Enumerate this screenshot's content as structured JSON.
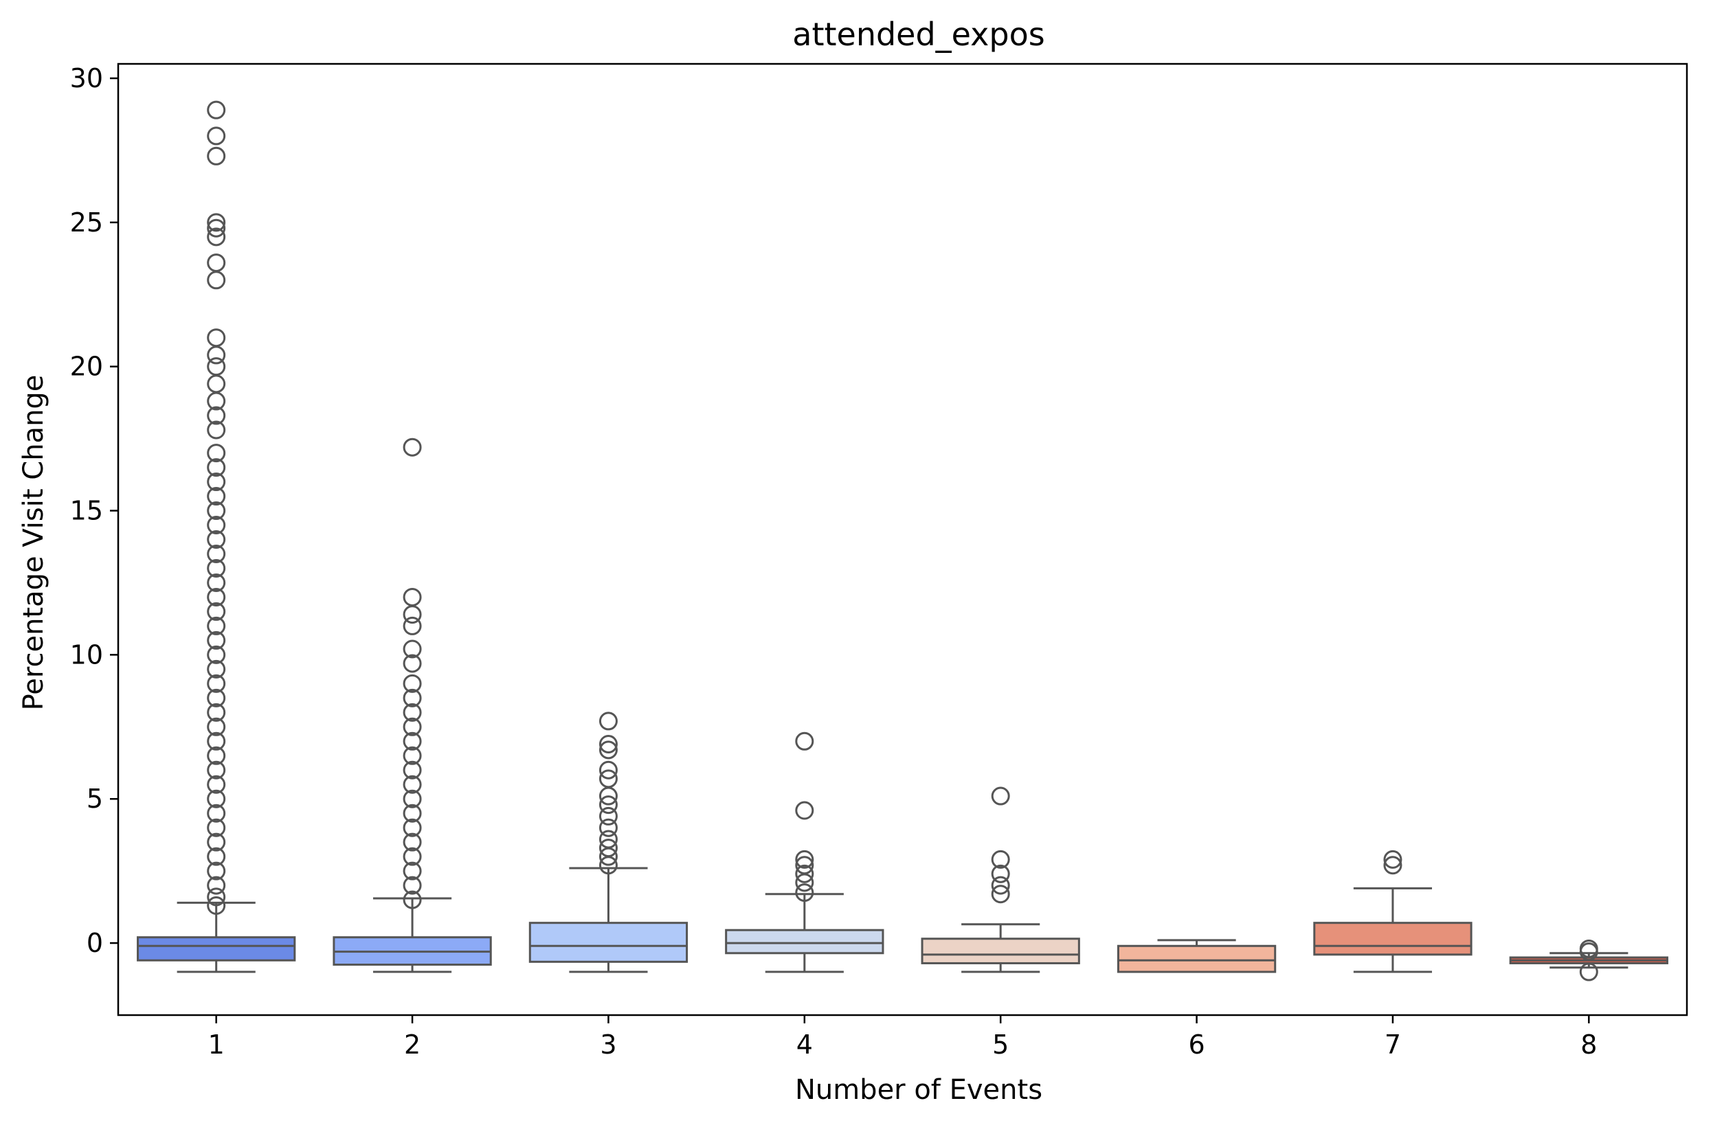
{
  "chart_data": {
    "type": "box",
    "title": "attended_expos",
    "xlabel": "Number of Events",
    "ylabel": "Percentage Visit Change",
    "ylim": [
      -2.5,
      30.5
    ],
    "yticks": [
      0,
      5,
      10,
      15,
      20,
      25,
      30
    ],
    "grid": false,
    "categories": [
      "1",
      "2",
      "3",
      "4",
      "5",
      "6",
      "7",
      "8"
    ],
    "boxes": [
      {
        "category": "1",
        "color": "#6b8ae6",
        "q1": -0.6,
        "median": -0.1,
        "q3": 0.2,
        "whisker_low": -1.0,
        "whisker_high": 1.4,
        "outliers": [
          1.3,
          1.6,
          2.0,
          2.5,
          3.0,
          3.5,
          4.0,
          4.5,
          5.0,
          5.5,
          6.0,
          6.5,
          7.0,
          7.5,
          8.0,
          8.5,
          9.0,
          9.5,
          10.0,
          10.5,
          11.0,
          11.5,
          12.0,
          12.5,
          13.0,
          13.5,
          14.0,
          14.5,
          15.0,
          15.5,
          16.0,
          16.5,
          17.0,
          17.8,
          18.3,
          18.8,
          19.4,
          20.0,
          20.4,
          21.0,
          23.0,
          23.6,
          24.5,
          24.8,
          25.0,
          27.3,
          28.0,
          28.9
        ]
      },
      {
        "category": "2",
        "color": "#8caaf6",
        "q1": -0.75,
        "median": -0.3,
        "q3": 0.2,
        "whisker_low": -1.0,
        "whisker_high": 1.55,
        "outliers": [
          1.5,
          2.0,
          2.5,
          3.0,
          3.5,
          4.0,
          4.5,
          5.0,
          5.5,
          6.0,
          6.5,
          7.0,
          7.5,
          8.0,
          8.5,
          9.0,
          9.7,
          10.2,
          11.0,
          11.4,
          12.0,
          17.2
        ]
      },
      {
        "category": "3",
        "color": "#b0c9f9",
        "q1": -0.65,
        "median": -0.1,
        "q3": 0.7,
        "whisker_low": -1.0,
        "whisker_high": 2.6,
        "outliers": [
          2.7,
          3.0,
          3.3,
          3.6,
          4.0,
          4.4,
          4.8,
          5.1,
          5.7,
          6.0,
          6.7,
          6.9,
          7.7
        ]
      },
      {
        "category": "4",
        "color": "#ccd9ee",
        "q1": -0.35,
        "median": 0.0,
        "q3": 0.45,
        "whisker_low": -1.0,
        "whisker_high": 1.7,
        "outliers": [
          1.75,
          2.1,
          2.4,
          2.7,
          2.9,
          4.6,
          7.0
        ]
      },
      {
        "category": "5",
        "color": "#ecd3c6",
        "q1": -0.7,
        "median": -0.4,
        "q3": 0.15,
        "whisker_low": -1.0,
        "whisker_high": 0.65,
        "outliers": [
          1.7,
          2.0,
          2.4,
          2.9,
          5.1
        ]
      },
      {
        "category": "6",
        "color": "#f2b59c",
        "q1": -1.0,
        "median": -0.6,
        "q3": -0.1,
        "whisker_low": -1.0,
        "whisker_high": 0.1,
        "outliers": []
      },
      {
        "category": "7",
        "color": "#e6917a",
        "q1": -0.4,
        "median": -0.1,
        "q3": 0.7,
        "whisker_low": -1.0,
        "whisker_high": 1.9,
        "outliers": [
          2.7,
          2.9
        ]
      },
      {
        "category": "8",
        "color": "#d4604e",
        "q1": -0.7,
        "median": -0.6,
        "q3": -0.5,
        "whisker_low": -0.85,
        "whisker_high": -0.35,
        "outliers": [
          -0.2,
          -0.3,
          -1.0
        ]
      }
    ]
  }
}
